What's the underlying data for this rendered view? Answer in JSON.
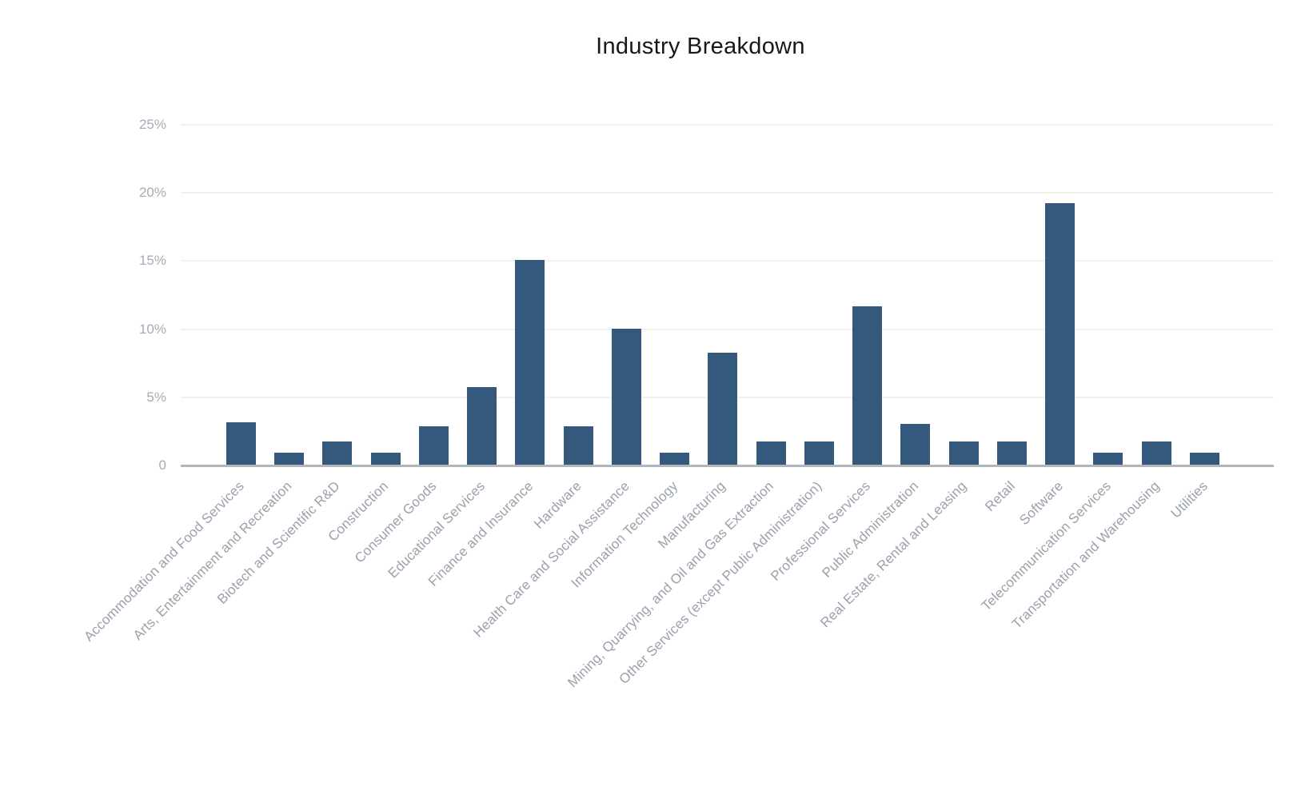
{
  "title": "Industry Breakdown",
  "colors": {
    "bar": "#35597d",
    "gridline": "#f2f2f3",
    "axis_line": "#b4b7ba",
    "y_tick_text": "#a5abb5",
    "x_label_text": "#9aa1ac",
    "title_text": "#16181d",
    "background": "#ffffff"
  },
  "chart_data": {
    "type": "bar",
    "title": "Industry Breakdown",
    "xlabel": "",
    "ylabel": "",
    "unit": "%",
    "ylim": [
      0,
      25
    ],
    "grid": "horizontal",
    "legend": "none",
    "y_ticks": [
      {
        "value": 25,
        "label": "25%"
      },
      {
        "value": 20,
        "label": "20%"
      },
      {
        "value": 15,
        "label": "15%"
      },
      {
        "value": 10,
        "label": "10%"
      },
      {
        "value": 5,
        "label": "5%"
      },
      {
        "value": 0,
        "label": "0"
      }
    ],
    "categories": [
      "Accommodation and Food Services",
      "Arts, Entertainment and Recreation",
      "Biotech and Scientific R&D",
      "Construction",
      "Consumer Goods",
      "Educational Services",
      "Finance and Insurance",
      "Hardware",
      "Health Care and Social Assistance",
      "Information Technology",
      "Manufacturing",
      "Mining, Quarrying, and Oil and Gas Extraction",
      "Other Services (except Public Administration)",
      "Professional Services",
      "Public Administration",
      "Real Estate, Rental and Leasing",
      "Retail",
      "Software",
      "Telecommunication Services",
      "Transportation and Warehousing",
      "Utilities"
    ],
    "values": [
      3.1,
      0.9,
      1.7,
      0.9,
      2.8,
      5.7,
      15.0,
      2.8,
      10.0,
      0.9,
      8.2,
      1.7,
      1.7,
      11.6,
      3.0,
      1.7,
      1.7,
      19.2,
      0.9,
      1.7,
      0.9
    ]
  }
}
